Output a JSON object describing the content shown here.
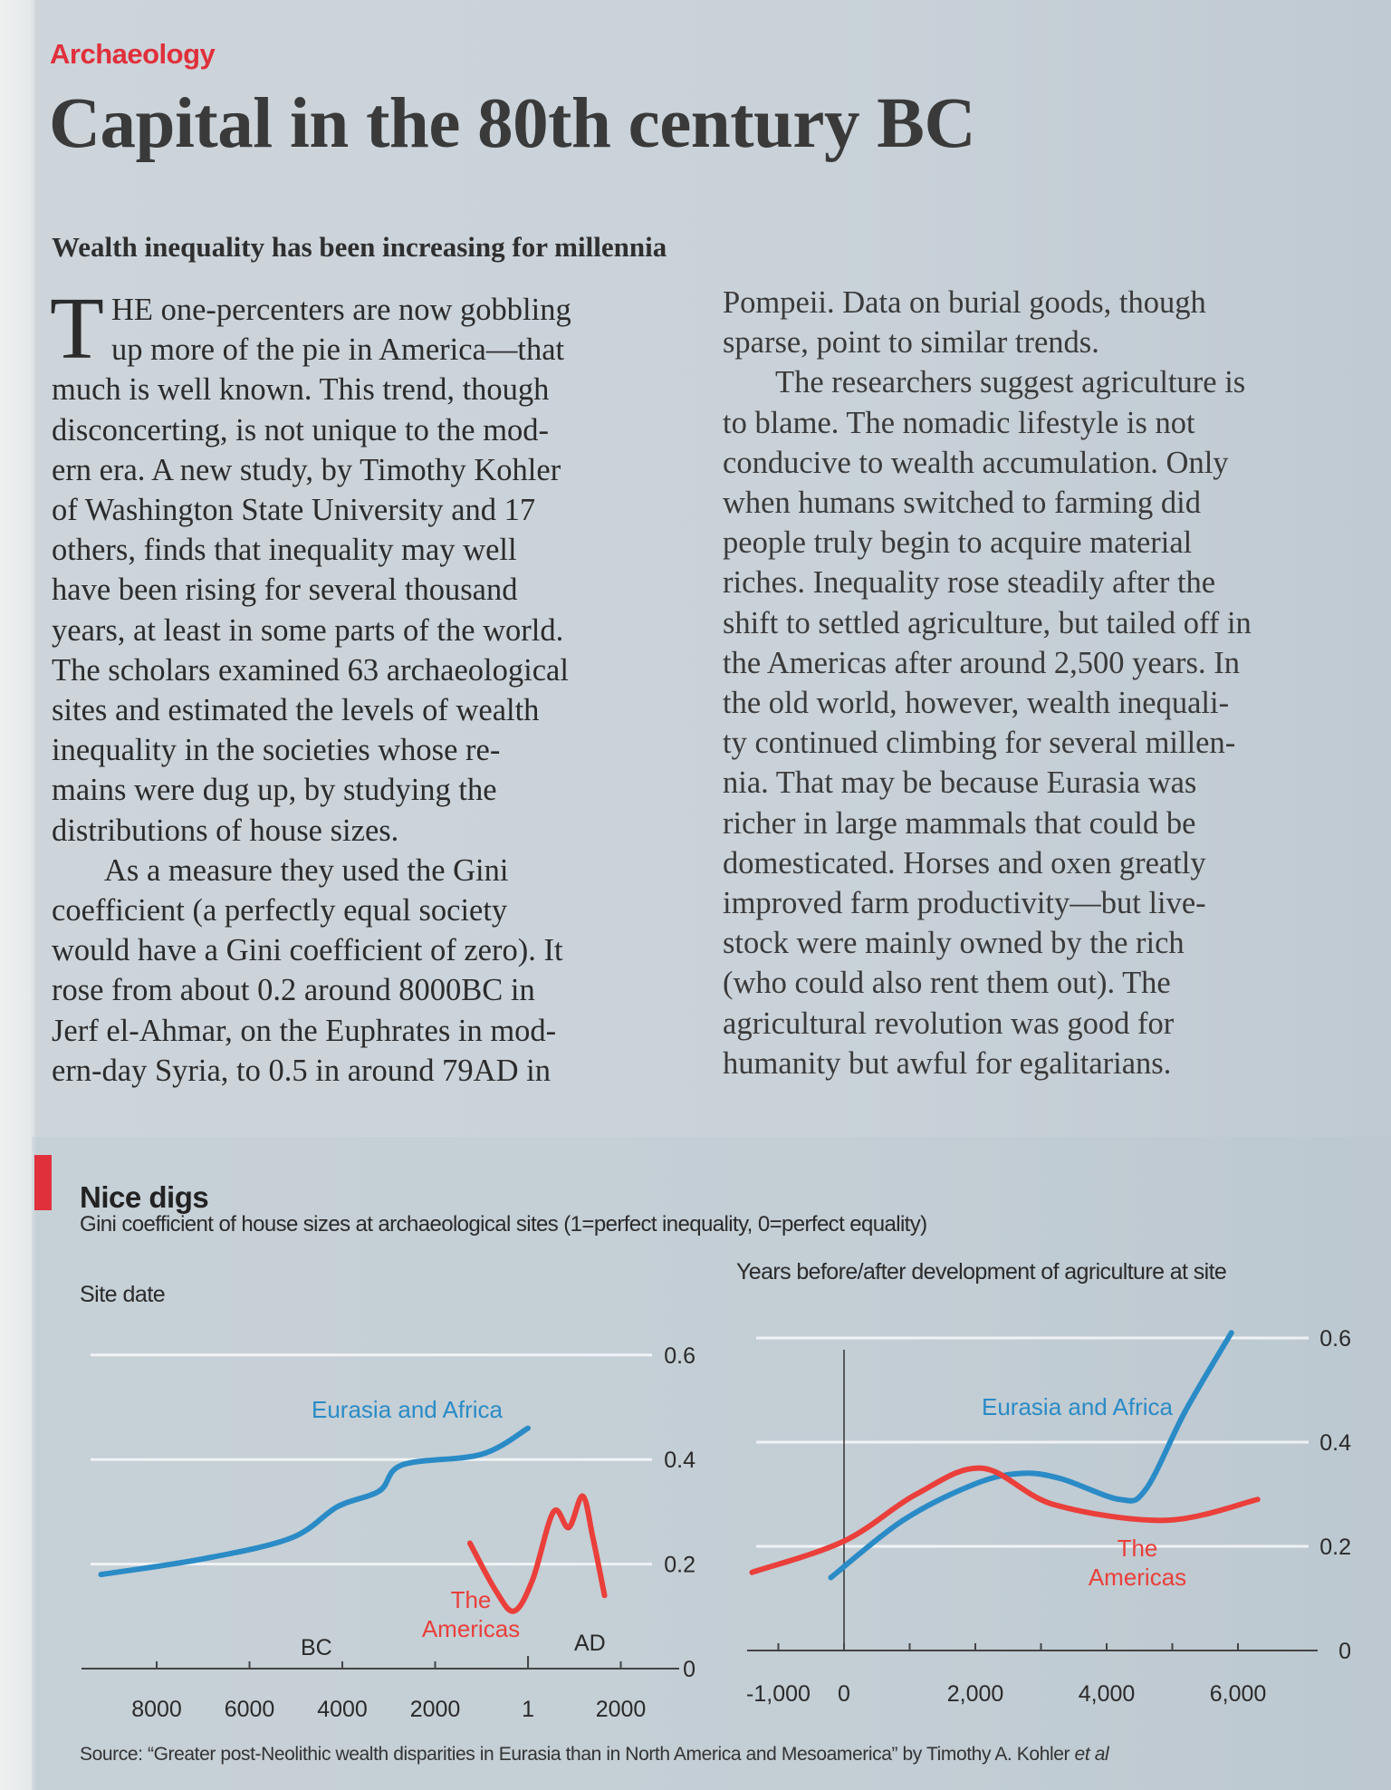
{
  "article": {
    "section": "Archaeology",
    "title": "Capital in the 80th century BC",
    "standfirst": "Wealth inequality has been increasing for millennia",
    "drop_cap": "T",
    "left_lines": [
      "HE one-percenters are now gobbling",
      "up more of the pie in America—that",
      "much is well known. This trend, though",
      "disconcerting, is not unique to the mod-",
      "ern era. A new study, by Timothy Kohler",
      "of Washington State University and 17",
      "others, finds that inequality may well",
      "have been rising for several thousand",
      "years, at least in some parts of the world.",
      "The scholars examined 63 archaeological",
      "sites and estimated the levels of wealth",
      "inequality in the societies whose re-",
      "mains were dug up, by studying the",
      "distributions of house sizes.",
      "As a measure they used the Gini",
      "coefficient (a perfectly equal society",
      "would have a Gini coefficient of zero). It",
      "rose from about 0.2 around 8000BC in",
      "Jerf el-Ahmar, on the Euphrates in mod-",
      "ern-day Syria, to 0.5 in around 79AD in"
    ],
    "right_lines": [
      "Pompeii. Data on burial goods, though",
      "sparse, point to similar trends.",
      "The researchers suggest agriculture is",
      "to blame. The nomadic lifestyle is not",
      "conducive to wealth accumulation. Only",
      "when humans switched to farming did",
      "people truly begin to acquire material",
      "riches. Inequality rose steadily after the",
      "shift to settled agriculture, but tailed off in",
      "the Americas after around 2,500 years. In",
      "the old world, however, wealth inequali-",
      "ty continued climbing for several millen-",
      "nia. That may be because Eurasia was",
      "richer in large mammals that could be",
      "domesticated. Horses and oxen greatly",
      "improved farm productivity—but live-",
      "stock were mainly owned by the rich",
      "(who could also rent them out). The",
      "agricultural revolution was good for",
      "humanity but awful for egalitarians."
    ]
  },
  "chart_title": "Nice digs",
  "chart_subtitle": "Gini coefficient of house sizes at archaeological sites (1=perfect inequality, 0=perfect equality)",
  "source": {
    "text": "Source: “Greater post-Neolithic wealth disparities in Eurasia than in North America and Mesoamerica” by Timothy A. Kohler ",
    "italic": "et al"
  },
  "colors": {
    "accent_red": "#e0303b",
    "eurasia": "#2a8bc6",
    "americas": "#ea3f3a"
  },
  "chart_data": [
    {
      "type": "line",
      "xlabel": "Site date",
      "x_ticks": [
        -8000,
        -6000,
        -4000,
        -2000,
        1,
        2000
      ],
      "x_tick_labels": [
        "8000",
        "6000",
        "4000",
        "2000",
        "1",
        "2000"
      ],
      "era_labels": [
        "BC",
        "AD"
      ],
      "y_ticks": [
        0,
        0.2,
        0.4,
        0.6
      ],
      "y_tick_labels": [
        "0",
        "0.2",
        "0.4",
        "0.6"
      ],
      "ylim": [
        0,
        0.6
      ],
      "grid": true,
      "series": [
        {
          "name": "Eurasia and Africa",
          "color": "#2a8bc6",
          "x": [
            -9200,
            -7000,
            -5100,
            -4100,
            -3200,
            -2700,
            -1000,
            0
          ],
          "y": [
            0.18,
            0.21,
            0.25,
            0.31,
            0.34,
            0.39,
            0.41,
            0.46
          ]
        },
        {
          "name": "The Americas",
          "name_lines": [
            "The",
            "Americas"
          ],
          "color": "#ea3f3a",
          "x": [
            -1250,
            -700,
            -300,
            100,
            550,
            880,
            1180,
            1400,
            1650
          ],
          "y": [
            0.24,
            0.15,
            0.11,
            0.17,
            0.3,
            0.27,
            0.33,
            0.25,
            0.14
          ]
        }
      ]
    },
    {
      "type": "line",
      "xlabel": "Years before/after development of agriculture at site",
      "x_ticks": [
        -1000,
        0,
        2000,
        4000,
        6000
      ],
      "x_tick_labels": [
        "-1,000",
        "0",
        "2,000",
        "4,000",
        "6,000"
      ],
      "minor_x_ticks": [
        1000,
        3000,
        5000
      ],
      "y_ticks": [
        0,
        0.2,
        0.4,
        0.6
      ],
      "y_tick_labels": [
        "0",
        "0.2",
        "0.4",
        "0.6"
      ],
      "ylim": [
        0,
        0.6
      ],
      "grid": true,
      "series": [
        {
          "name": "Eurasia and Africa",
          "color": "#2a8bc6",
          "x": [
            -200,
            900,
            2000,
            2700,
            3300,
            4200,
            4600,
            5200,
            5900
          ],
          "y": [
            0.14,
            0.25,
            0.32,
            0.34,
            0.33,
            0.29,
            0.31,
            0.46,
            0.61
          ]
        },
        {
          "name": "The Americas",
          "name_lines": [
            "The",
            "Americas"
          ],
          "color": "#ea3f3a",
          "x": [
            -1400,
            0,
            1100,
            2100,
            3200,
            4900,
            6300
          ],
          "y": [
            0.15,
            0.21,
            0.3,
            0.35,
            0.28,
            0.25,
            0.29
          ]
        }
      ]
    }
  ]
}
